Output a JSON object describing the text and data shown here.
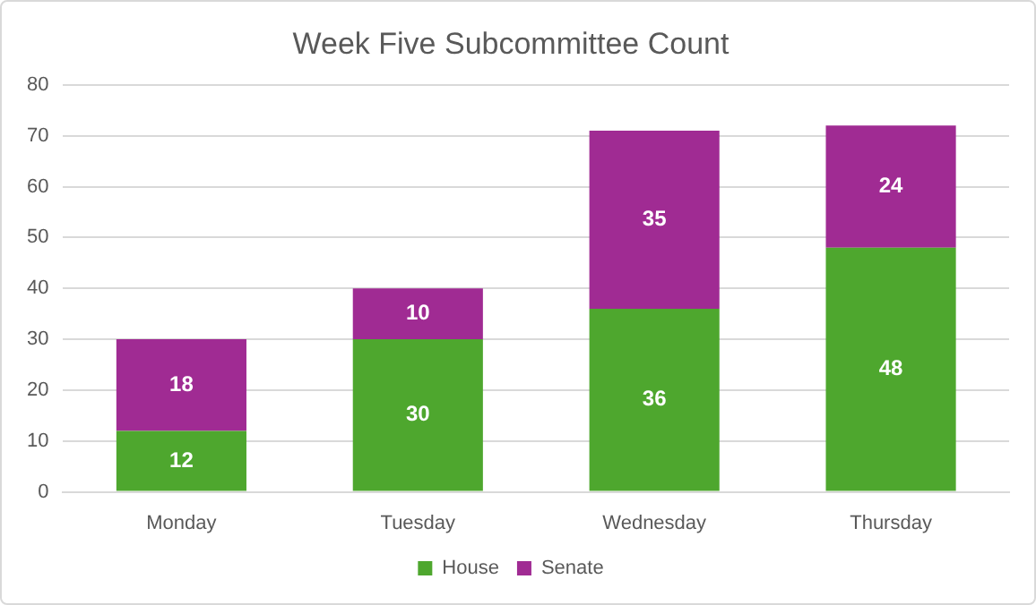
{
  "chart_data": {
    "type": "bar",
    "title": "Week Five Subcommittee Count",
    "categories": [
      "Monday",
      "Tuesday",
      "Wednesday",
      "Thursday"
    ],
    "series": [
      {
        "name": "House",
        "color": "#4ea72e",
        "values": [
          12,
          30,
          36,
          48
        ]
      },
      {
        "name": "Senate",
        "color": "#a02b93",
        "values": [
          18,
          10,
          35,
          24
        ]
      }
    ],
    "stacked": true,
    "ylim": [
      0,
      80
    ],
    "yticks": [
      0,
      10,
      20,
      30,
      40,
      50,
      60,
      70,
      80
    ],
    "grid": "y",
    "legend": "bottom",
    "data_labels": true
  }
}
